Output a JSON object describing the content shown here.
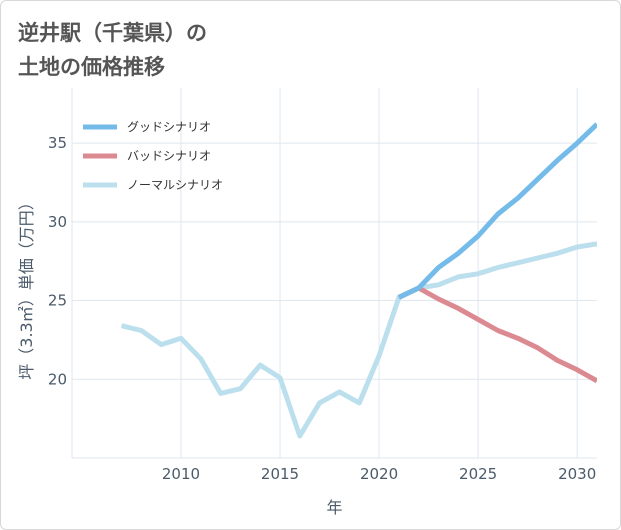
{
  "page": {
    "title": "逆井駅（千葉県）の\n土地の価格推移"
  },
  "colors": {
    "good": "#74bbea",
    "bad": "#dc8a92",
    "normal": "#bcdfee",
    "grid": "#dfe7ef",
    "axis_text": "#4a5a6a"
  },
  "chart_data": {
    "type": "line",
    "title": "逆井駅（千葉県）の土地の価格推移",
    "xlabel": "年",
    "ylabel": "坪（3.3㎡）単価（万円）",
    "xlim": [
      2004.5,
      2031
    ],
    "ylim": [
      15,
      38.5
    ],
    "xticks": [
      2010,
      2015,
      2020,
      2025,
      2030
    ],
    "yticks": [
      20,
      25,
      30,
      35
    ],
    "grid": true,
    "legend_position": "top-left",
    "series": [
      {
        "key": "good",
        "name": "グッドシナリオ",
        "x": [
          2021,
          2022,
          2023,
          2024,
          2025,
          2026,
          2027,
          2028,
          2029,
          2030,
          2031
        ],
        "y": [
          25.2,
          25.8,
          27.1,
          28.0,
          29.1,
          30.5,
          31.5,
          32.7,
          33.9,
          35.0,
          36.2
        ]
      },
      {
        "key": "bad",
        "name": "バッドシナリオ",
        "x": [
          2021,
          2022,
          2023,
          2024,
          2025,
          2026,
          2027,
          2028,
          2029,
          2030,
          2031
        ],
        "y": [
          25.2,
          25.8,
          25.1,
          24.5,
          23.8,
          23.1,
          22.6,
          22.0,
          21.2,
          20.6,
          19.9
        ]
      },
      {
        "key": "normal",
        "name": "ノーマルシナリオ",
        "x": [
          2007,
          2008,
          2009,
          2010,
          2011,
          2012,
          2013,
          2014,
          2015,
          2016,
          2017,
          2018,
          2019,
          2020,
          2021,
          2022,
          2023,
          2024,
          2025,
          2026,
          2027,
          2028,
          2029,
          2030,
          2031
        ],
        "y": [
          23.4,
          23.1,
          22.2,
          22.6,
          21.3,
          19.1,
          19.4,
          20.9,
          20.1,
          16.4,
          18.5,
          19.2,
          18.5,
          21.5,
          25.2,
          25.8,
          26.0,
          26.5,
          26.7,
          27.1,
          27.4,
          27.7,
          28.0,
          28.4,
          28.6
        ]
      }
    ]
  }
}
